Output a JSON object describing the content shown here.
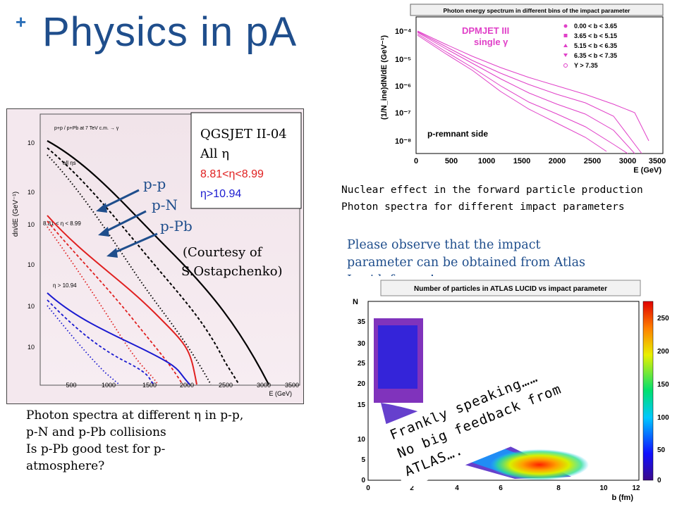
{
  "title": {
    "plus": "+",
    "text": "Physics in pA"
  },
  "left_panel": {
    "legend": {
      "line1": "QGSJET II-04",
      "line2": "All η",
      "line3": "8.81<η<8.99",
      "line4": "η>10.94",
      "line3_color": "#e02020",
      "line4_color": "#1a1ad0"
    },
    "arrows": [
      "p-p",
      "p-N",
      "p-Pb"
    ],
    "courtesy": [
      "(Courtesy of",
      "S.Ostapchenko)"
    ],
    "inner_title": "p+p / p+Pb at 7 TeV c.m. → γ",
    "inner_labels": [
      "all ηs",
      "8.81 < η < 8.99",
      "η > 10.94"
    ],
    "ylabel": "dn/dE (GeV⁻¹)",
    "xlabel": "E (GeV)",
    "yticks": [
      "10",
      "10",
      "10",
      "10",
      "10",
      "10",
      "10"
    ],
    "xticks": [
      "500",
      "1000",
      "1500",
      "2000",
      "2500",
      "3000",
      "3500"
    ]
  },
  "left_caption": [
    "Photon spectra at different η in p-p,",
    "p-N and p-Pb collisions",
    "Is p-Pb good test for p-",
    "atmosphere?"
  ],
  "top_right_chart": {
    "title": "Photon energy spectrum in different bins of the impact parameter",
    "model": [
      "DPMJET III",
      "single γ"
    ],
    "legend": [
      "0.00 < b < 3.65",
      "3.65 < b < 5.15",
      "5.15 < b < 6.35",
      "6.35 < b < 7.35",
      "Y > 7.35"
    ],
    "annotation": "p-remnant side",
    "ylabel": "(1/N_ine)dN/dE (GeV⁻¹)",
    "xlabel": "E (GeV)",
    "xticks": [
      "0",
      "500",
      "1000",
      "1500",
      "2000",
      "2500",
      "3000",
      "3500"
    ],
    "yticks": [
      "10⁻⁴",
      "10⁻⁵",
      "10⁻⁶",
      "10⁻⁷",
      "10⁻⁸"
    ],
    "color": "#e040c8"
  },
  "top_right_caption": [
    "Nuclear effect in the forward particle production",
    "Photon spectra for different impact parameters"
  ],
  "observe_text": [
    "Please observe that the impact",
    "parameter can be obtained from Atlas",
    "Lucid, for ex.!"
  ],
  "heatmap": {
    "title": "Number of particles in ATLAS LUCID vs impact parameter",
    "ylabel": "N",
    "xlabel": "b (fm)",
    "xticks": [
      "0",
      "2",
      "4",
      "6",
      "8",
      "10",
      "12"
    ],
    "yticks": [
      "0",
      "5",
      "10",
      "15",
      "20",
      "25",
      "30",
      "35"
    ],
    "colorbar_ticks": [
      "0",
      "50",
      "100",
      "150",
      "200",
      "250"
    ]
  },
  "stamp": [
    "Frankly speaking……",
    "No big feedback from ATLAS…."
  ]
}
